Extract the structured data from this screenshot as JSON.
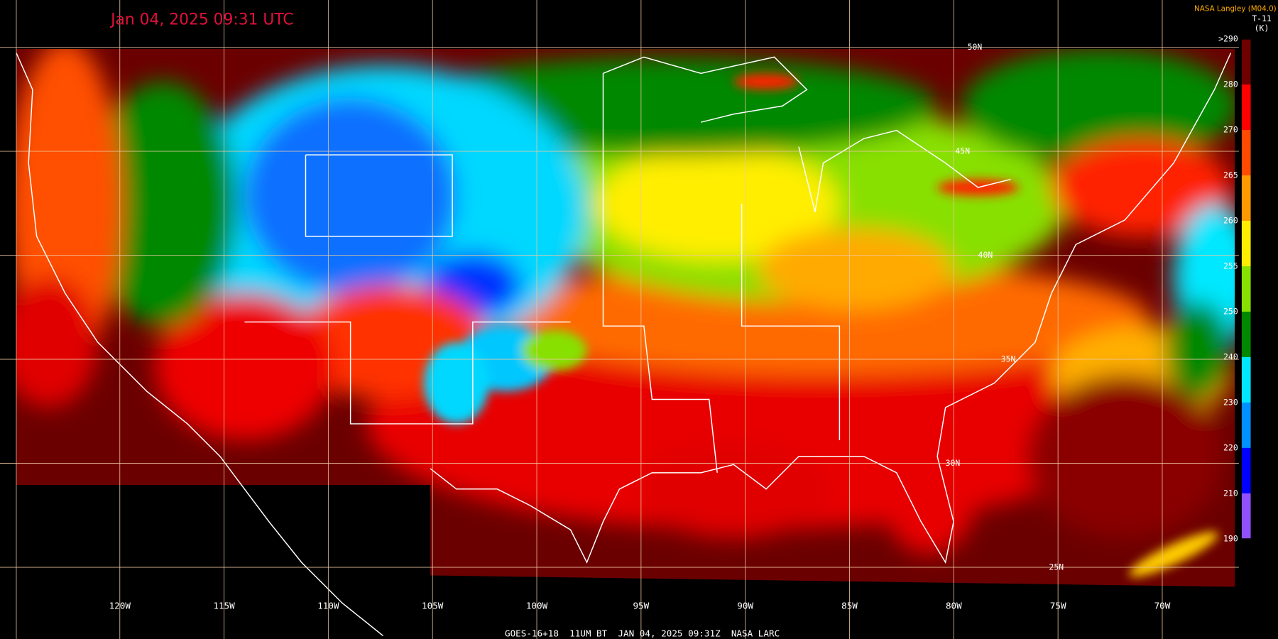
{
  "title": "Jan 04, 2025 09:31 UTC",
  "credit": "NASA Langley (M04.0)",
  "product": "T-11",
  "unit": "(K)",
  "colorbar": {
    "labels": [
      ">290",
      "280",
      "270",
      "265",
      "260",
      "255",
      "250",
      "240",
      "230",
      "220",
      "210",
      "190"
    ],
    "colors": [
      "#6e0000",
      "#ff0000",
      "#ff4a00",
      "#ff9900",
      "#ffee00",
      "#88e000",
      "#008800",
      "#00e8ff",
      "#0090ff",
      "#0000ff",
      "#9050ff"
    ]
  },
  "longitudes": [
    "120W",
    "115W",
    "110W",
    "105W",
    "100W",
    "95W",
    "90W",
    "85W",
    "80W",
    "75W",
    "70W"
  ],
  "latitudes": [
    "50N",
    "45N",
    "40N",
    "35N",
    "30N",
    "25N"
  ],
  "footer": "GOES-16+18  11UM BT  JAN 04, 2025 09:31Z  NASA LARC"
}
